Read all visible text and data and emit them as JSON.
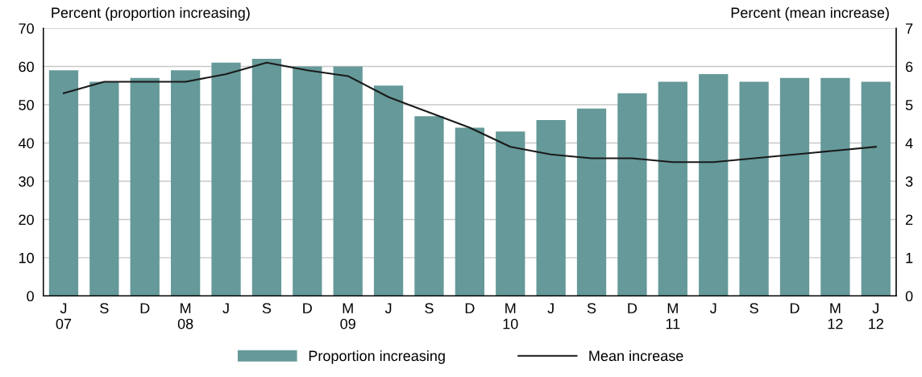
{
  "chart_data": {
    "type": "bar",
    "ylabel": "Percent (proportion increasing)",
    "y2label": "Percent (mean increase)",
    "categories": [
      "J\n07",
      "S",
      "D",
      "M\n08",
      "J",
      "S",
      "D",
      "M\n09",
      "J",
      "S",
      "D",
      "M\n10",
      "J",
      "S",
      "D",
      "M\n11",
      "J",
      "S",
      "D",
      "M\n12",
      "J\n12"
    ],
    "series": [
      {
        "name": "Proportion increasing",
        "color": "#669999",
        "values": [
          59,
          56,
          57,
          59,
          61,
          62,
          60,
          60,
          55,
          47,
          44,
          43,
          46,
          49,
          53,
          56,
          58,
          56,
          57,
          57,
          56
        ]
      },
      {
        "name": "Mean increase",
        "type": "line",
        "axis": "y2",
        "color": "#1a1a1a",
        "values": [
          5.3,
          5.6,
          5.6,
          5.6,
          5.8,
          6.1,
          5.9,
          5.75,
          5.2,
          4.8,
          4.4,
          3.9,
          3.7,
          3.6,
          3.6,
          3.5,
          3.5,
          3.6,
          3.7,
          3.8,
          3.9
        ]
      }
    ],
    "ylim": [
      0,
      70
    ],
    "yticks": [
      0,
      10,
      20,
      30,
      40,
      50,
      60,
      70
    ],
    "y2lim": [
      0,
      7
    ],
    "y2ticks": [
      0,
      1,
      2,
      3,
      4,
      5,
      6,
      7
    ],
    "grid": "y",
    "legend": "bottom",
    "marker": "none",
    "line_style": "solid"
  }
}
